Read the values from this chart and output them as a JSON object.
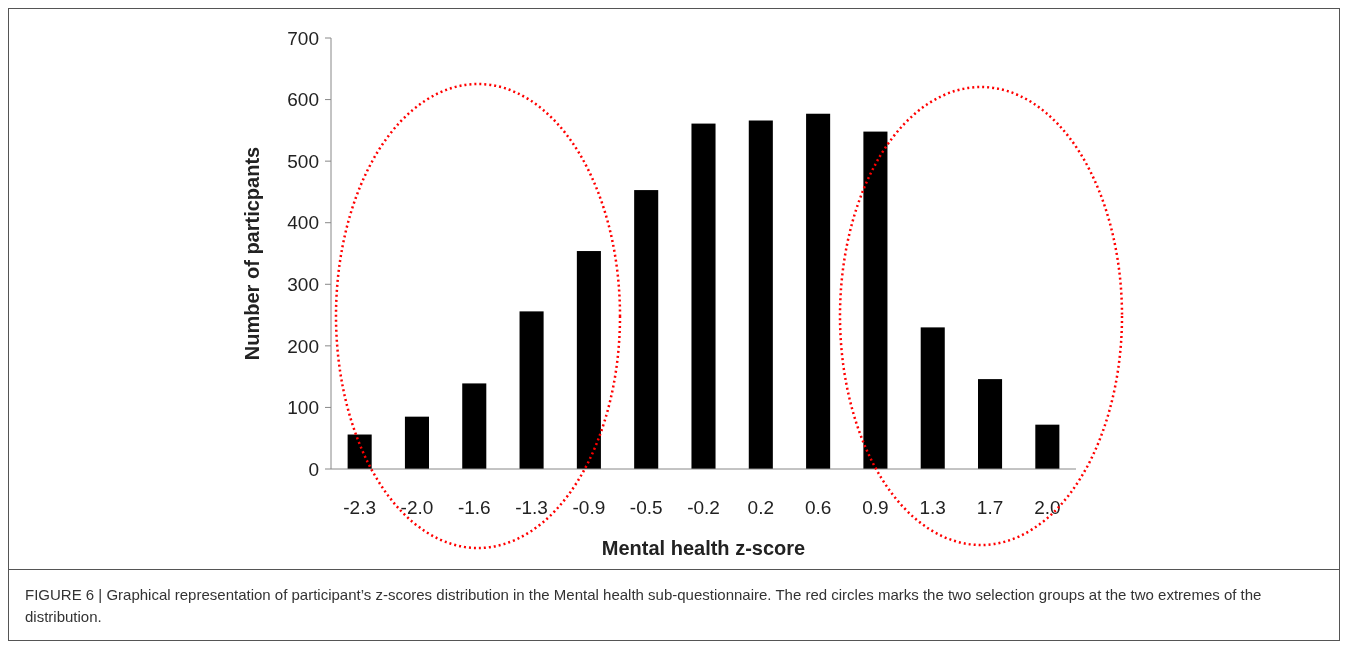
{
  "chart_data": {
    "type": "bar",
    "xlabel": "Mental health z-score",
    "ylabel": "Number of particpants",
    "categories": [
      "-2.3",
      "-2.0",
      "-1.6",
      "-1.3",
      "-0.9",
      "-0.5",
      "-0.2",
      "0.2",
      "0.6",
      "0.9",
      "1.3",
      "1.7",
      "2.0"
    ],
    "values": [
      56,
      85,
      139,
      256,
      354,
      453,
      561,
      566,
      577,
      548,
      230,
      146,
      72
    ],
    "color": "#000000",
    "ylim": [
      0,
      700
    ],
    "yticks": [
      0,
      100,
      200,
      300,
      400,
      500,
      600,
      700
    ],
    "grid": false,
    "annotations": [
      "FIGURE 6 | Graphical representation of participant’s z-scores distribution in the Mental health sub-questionnaire. The red circles marks the two selection groups at the two extremes of the distribution."
    ]
  }
}
